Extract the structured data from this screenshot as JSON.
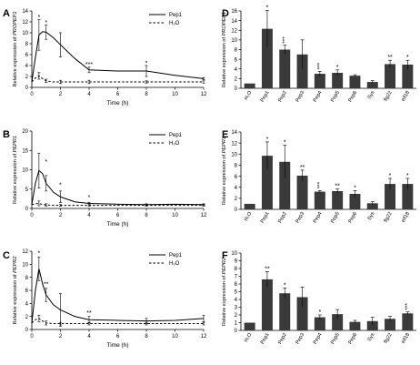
{
  "chart_data": [
    {
      "panel": "A",
      "type": "line",
      "ylabel": "Relative expression of PROPEP1",
      "xlabel": "Time (h)",
      "ylim": [
        0,
        14
      ],
      "yticks": [
        0,
        2,
        4,
        6,
        8,
        10,
        12,
        14
      ],
      "xlim": [
        0,
        12
      ],
      "xticks": [
        0,
        2,
        4,
        6,
        8,
        10,
        12
      ],
      "legend": "top-right",
      "series": [
        {
          "name": "Pep1",
          "style": "solid",
          "x": [
            0,
            0.25,
            0.5,
            0.75,
            1,
            1.5,
            2,
            3,
            4,
            6,
            8,
            10,
            12
          ],
          "y": [
            1.0,
            5.5,
            9.6,
            10.2,
            10.1,
            9.1,
            7.8,
            5.3,
            3.2,
            3.0,
            3.0,
            2.2,
            1.6
          ],
          "err": [
            0,
            0,
            2.8,
            0,
            1.3,
            0,
            2.2,
            0,
            0.5,
            0,
            1.0,
            0,
            0.2
          ]
        },
        {
          "name": "H₂O",
          "style": "dashed",
          "x": [
            0,
            0.25,
            0.5,
            0.75,
            1,
            1.5,
            2,
            3,
            4,
            6,
            8,
            10,
            12
          ],
          "y": [
            1.0,
            1.7,
            2.1,
            1.6,
            1.2,
            1.0,
            1.0,
            1.0,
            1.0,
            1.0,
            1.0,
            1.0,
            1.0
          ],
          "err": [
            0,
            0,
            0.6,
            0,
            0.3,
            0,
            0.3,
            0,
            0.3,
            0,
            0.2,
            0,
            0.2
          ]
        }
      ],
      "annotations": [
        {
          "x": 0.5,
          "y": 12.5,
          "text": "*"
        },
        {
          "x": 1,
          "y": 11.5,
          "text": "*"
        },
        {
          "x": 4,
          "y": 3.8,
          "text": "***"
        },
        {
          "x": 8,
          "y": 4.1,
          "text": "*"
        }
      ]
    },
    {
      "panel": "B",
      "type": "line",
      "ylabel": "Relative expression of PEPR1",
      "xlabel": "Time (h)",
      "ylim": [
        0,
        20
      ],
      "yticks": [
        0,
        5,
        10,
        15,
        20
      ],
      "xlim": [
        0,
        12
      ],
      "xticks": [
        0,
        2,
        4,
        6,
        8,
        10,
        12
      ],
      "legend": "top-right",
      "series": [
        {
          "name": "Pep1",
          "style": "solid",
          "x": [
            0,
            0.25,
            0.5,
            0.75,
            1,
            1.5,
            2,
            3,
            4,
            6,
            8,
            10,
            12
          ],
          "y": [
            1.0,
            6.5,
            9.8,
            9.0,
            6.5,
            4.2,
            3.0,
            1.7,
            1.3,
            1.1,
            1.0,
            1.1,
            1.0
          ],
          "err": [
            0,
            0,
            4.5,
            0,
            2.0,
            0,
            1.5,
            0,
            0.3,
            0,
            0.2,
            0,
            0.2
          ]
        },
        {
          "name": "H₂O",
          "style": "dashed",
          "x": [
            0,
            0.25,
            0.5,
            0.75,
            1,
            1.5,
            2,
            3,
            4,
            6,
            8,
            10,
            12
          ],
          "y": [
            1.0,
            1.2,
            1.3,
            1.0,
            0.9,
            0.8,
            0.8,
            0.8,
            0.8,
            0.8,
            0.8,
            0.8,
            0.8
          ],
          "err": [
            0,
            0,
            0.6,
            0,
            0.3,
            0,
            0.2,
            0,
            0.2,
            0,
            0.2,
            0,
            0.2
          ]
        }
      ],
      "annotations": [
        {
          "x": 1,
          "y": 11.5,
          "text": "*"
        },
        {
          "x": 2,
          "y": 5.5,
          "text": "*"
        },
        {
          "x": 4,
          "y": 2.4,
          "text": "*"
        }
      ]
    },
    {
      "panel": "C",
      "type": "line",
      "ylabel": "Relative expression of PEPR2",
      "xlabel": "Time (h)",
      "ylim": [
        0,
        12
      ],
      "yticks": [
        0,
        2,
        4,
        6,
        8,
        10,
        12
      ],
      "xlim": [
        0,
        12
      ],
      "xticks": [
        0,
        2,
        4,
        6,
        8,
        10,
        12
      ],
      "legend": "top-right",
      "series": [
        {
          "name": "Pep1",
          "style": "solid",
          "x": [
            0,
            0.25,
            0.5,
            0.75,
            1,
            1.5,
            2,
            3,
            4,
            6,
            8,
            10,
            12
          ],
          "y": [
            1.0,
            6.0,
            9.3,
            7.0,
            5.3,
            3.8,
            3.0,
            2.0,
            1.5,
            1.4,
            1.3,
            1.4,
            1.7
          ],
          "err": [
            0,
            0,
            1.8,
            0,
            1.0,
            0,
            2.5,
            0,
            0.5,
            0,
            0.4,
            0,
            0.5
          ]
        },
        {
          "name": "H₂O",
          "style": "dashed",
          "x": [
            0,
            0.25,
            0.5,
            0.75,
            1,
            1.5,
            2,
            3,
            4,
            6,
            8,
            10,
            12
          ],
          "y": [
            1.0,
            1.5,
            1.7,
            1.3,
            1.0,
            0.9,
            0.9,
            0.9,
            0.9,
            0.9,
            0.9,
            0.9,
            0.9
          ],
          "err": [
            0,
            0,
            0.5,
            0,
            0.3,
            0,
            0.2,
            0,
            0.2,
            0,
            0.2,
            0,
            0.2
          ]
        }
      ],
      "annotations": [
        {
          "x": 0.5,
          "y": 11.4,
          "text": "*"
        },
        {
          "x": 1,
          "y": 6.6,
          "text": "**"
        },
        {
          "x": 4,
          "y": 2.2,
          "text": "**"
        }
      ]
    },
    {
      "panel": "D",
      "type": "bar",
      "ylabel": "Relative expression of PROPEP1",
      "ylim": [
        0,
        16
      ],
      "yticks": [
        0,
        2,
        4,
        6,
        8,
        10,
        12,
        14,
        16
      ],
      "categories": [
        "H₂O",
        "Pep1",
        "Pep2",
        "Pep3",
        "Pep4",
        "Pep5",
        "Pep6",
        "Sys",
        "flg22",
        "elf18"
      ],
      "values": [
        1.0,
        12.3,
        8.0,
        7.0,
        3.0,
        3.2,
        2.6,
        1.3,
        5.0,
        4.9
      ],
      "errors": [
        0,
        3.8,
        0.9,
        3.0,
        0.5,
        0.6,
        0.2,
        0.3,
        0.8,
        0.9
      ],
      "labels": [
        "",
        "*",
        "***",
        "",
        "***",
        "*",
        "",
        "",
        "**",
        "*"
      ]
    },
    {
      "panel": "E",
      "type": "bar",
      "ylabel": "Relative expression of PEPR1",
      "ylim": [
        0,
        14
      ],
      "yticks": [
        0,
        2,
        4,
        6,
        8,
        10,
        12,
        14
      ],
      "categories": [
        "H₂O",
        "Pep1",
        "Pep2",
        "Pep3",
        "Pep4",
        "Pep5",
        "Pep6",
        "Sys",
        "flg22",
        "elf18"
      ],
      "values": [
        1.0,
        9.7,
        8.6,
        6.1,
        3.2,
        3.3,
        2.8,
        1.1,
        4.6,
        4.6
      ],
      "errors": [
        0,
        2.5,
        3.0,
        1.0,
        0.2,
        0.4,
        0.6,
        0.3,
        1.0,
        1.0
      ],
      "labels": [
        "",
        "*",
        "*",
        "**",
        "***",
        "**",
        "*",
        "",
        "*",
        "*"
      ]
    },
    {
      "panel": "F",
      "type": "bar",
      "ylabel": "Relative expression of PEPR2",
      "ylim": [
        0,
        10
      ],
      "yticks": [
        0,
        1,
        2,
        3,
        4,
        5,
        6,
        7,
        8,
        9,
        10
      ],
      "categories": [
        "H₂O",
        "Pep1",
        "Pep2",
        "Pep3",
        "Pep4",
        "Pep5",
        "Pep6",
        "Sys",
        "flg22",
        "elf18"
      ],
      "values": [
        1.0,
        6.6,
        4.8,
        4.3,
        1.7,
        2.1,
        1.1,
        1.2,
        1.5,
        2.2
      ],
      "errors": [
        0,
        1.0,
        0.7,
        1.3,
        0.3,
        0.6,
        0.2,
        0.5,
        0.3,
        0.2
      ],
      "labels": [
        "",
        "**",
        "*",
        "",
        "*",
        "",
        "",
        "",
        "",
        "***"
      ]
    }
  ]
}
